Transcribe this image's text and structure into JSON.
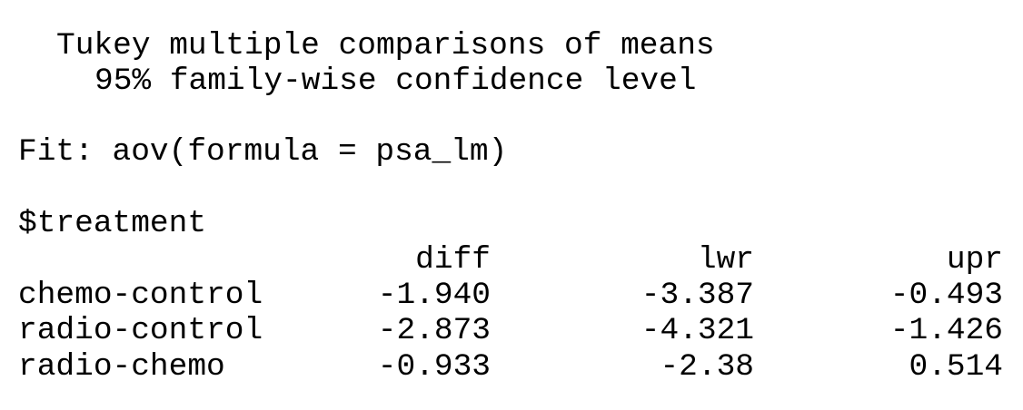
{
  "header": {
    "title": "Tukey multiple comparisons of means",
    "subtitle": "95% family-wise confidence level"
  },
  "fit": {
    "text": "Fit: aov(formula = psa_lm)"
  },
  "section": {
    "label": "$treatment"
  },
  "table": {
    "columns": [
      "diff",
      "lwr",
      "upr"
    ],
    "rows": [
      {
        "label": "chemo-control",
        "diff": "-1.940",
        "lwr": "-3.387",
        "upr": "-0.493"
      },
      {
        "label": "radio-control",
        "diff": "-2.873",
        "lwr": "-4.321",
        "upr": "-1.426"
      },
      {
        "label": "radio-chemo",
        "diff": "-0.933",
        "lwr": "-2.38",
        "upr": "0.514"
      }
    ]
  }
}
